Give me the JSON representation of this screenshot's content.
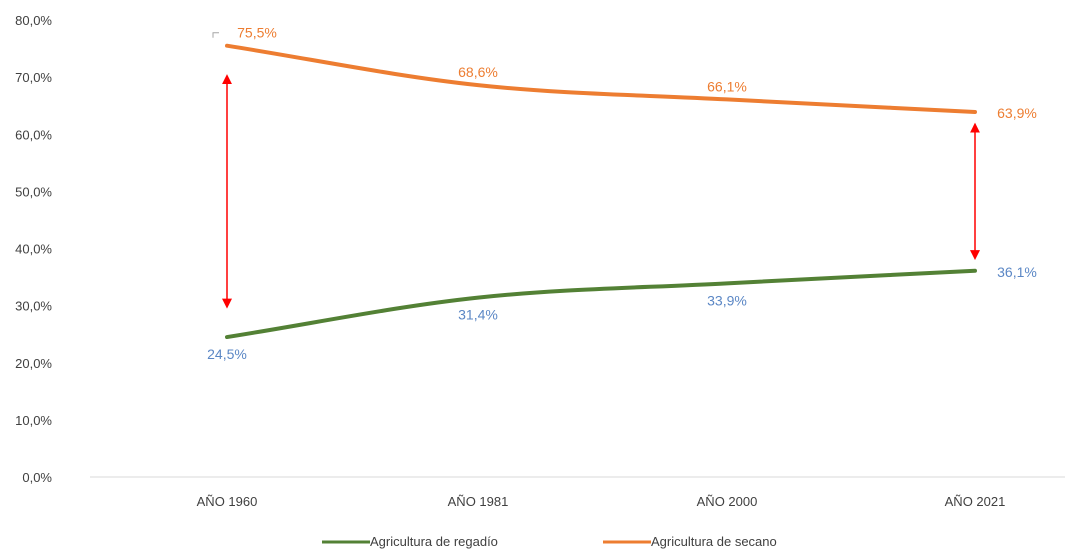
{
  "chart_data": {
    "type": "line",
    "categories": [
      "AÑO 1960",
      "AÑO 1981",
      "AÑO 2000",
      "AÑO 2021"
    ],
    "ylim": [
      0,
      80
    ],
    "yticks": [
      "0,0%",
      "10,0%",
      "20,0%",
      "30,0%",
      "40,0%",
      "50,0%",
      "60,0%",
      "70,0%",
      "80,0%"
    ],
    "grid": false,
    "legend_position": "bottom",
    "series": [
      {
        "name": "Agricultura de regadío",
        "values": [
          24.5,
          31.4,
          33.9,
          36.1
        ],
        "labels": [
          "24,5%",
          "31,4%",
          "33,9%",
          "36,1%"
        ],
        "color": "#538135",
        "label_color": "#5b87c5"
      },
      {
        "name": "Agricultura de secano",
        "values": [
          75.5,
          68.6,
          66.1,
          63.9
        ],
        "labels": [
          "75,5%",
          "68,6%",
          "66,1%",
          "63,9%"
        ],
        "color": "#ed7d31",
        "label_color": "#ed7d31"
      }
    ],
    "annotations": [
      {
        "type": "double-arrow",
        "category_index": 0,
        "from": 30,
        "to": 70,
        "color": "#ff0000"
      },
      {
        "type": "double-arrow",
        "category_index": 3,
        "from": 38.5,
        "to": 61.5,
        "color": "#ff0000"
      }
    ]
  }
}
